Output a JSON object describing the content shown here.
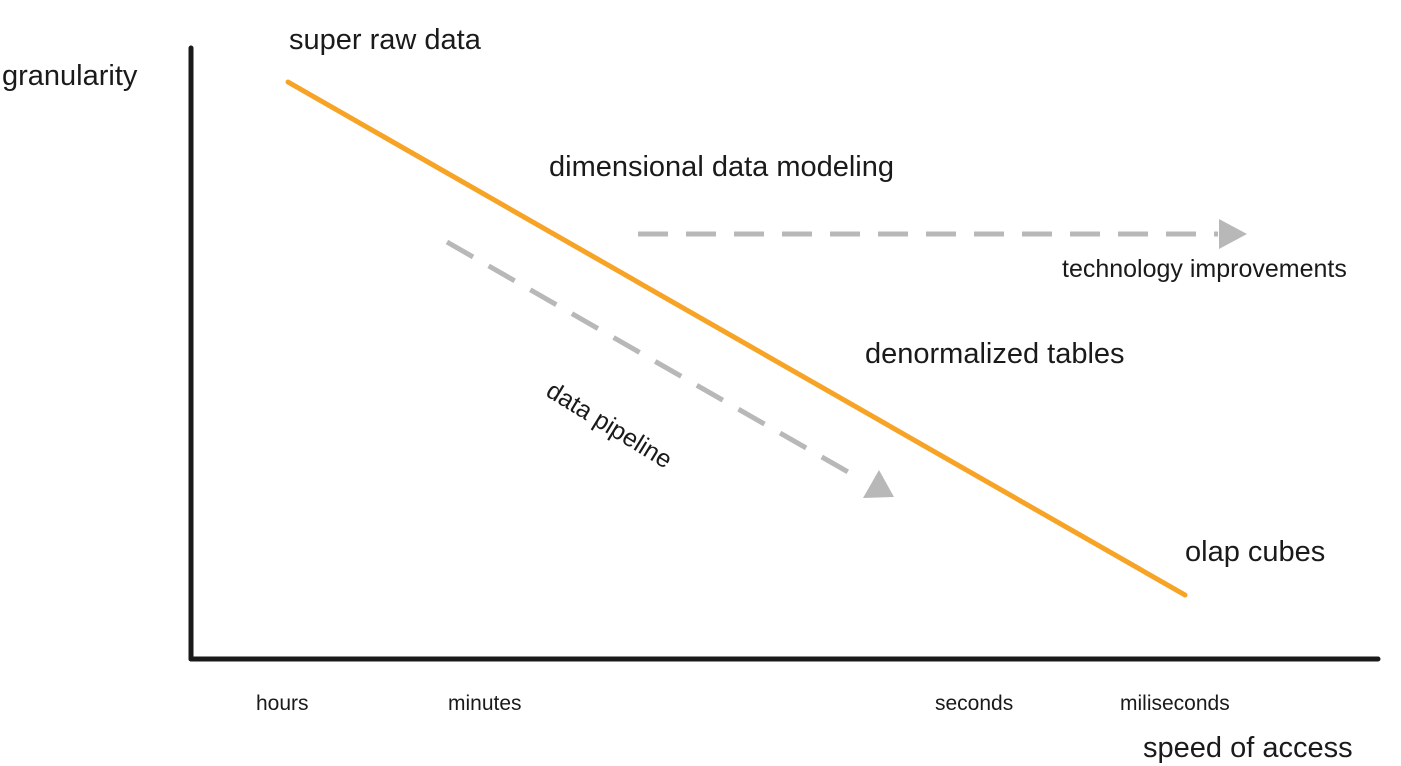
{
  "axes": {
    "y_label": "granularity",
    "x_label": "speed of access",
    "x_ticks": [
      "hours",
      "minutes",
      "seconds",
      "miliseconds"
    ]
  },
  "trend": {
    "start_label": "super raw data",
    "middle_labels": [
      "dimensional data modeling",
      "denormalized tables"
    ],
    "end_label": "olap cubes",
    "color": "#F7A325"
  },
  "arrows": {
    "pipeline_label": "data pipeline",
    "technology_label": "technology improvements",
    "color": "#B8B8B8"
  },
  "axis_color": "#1A1A1A"
}
